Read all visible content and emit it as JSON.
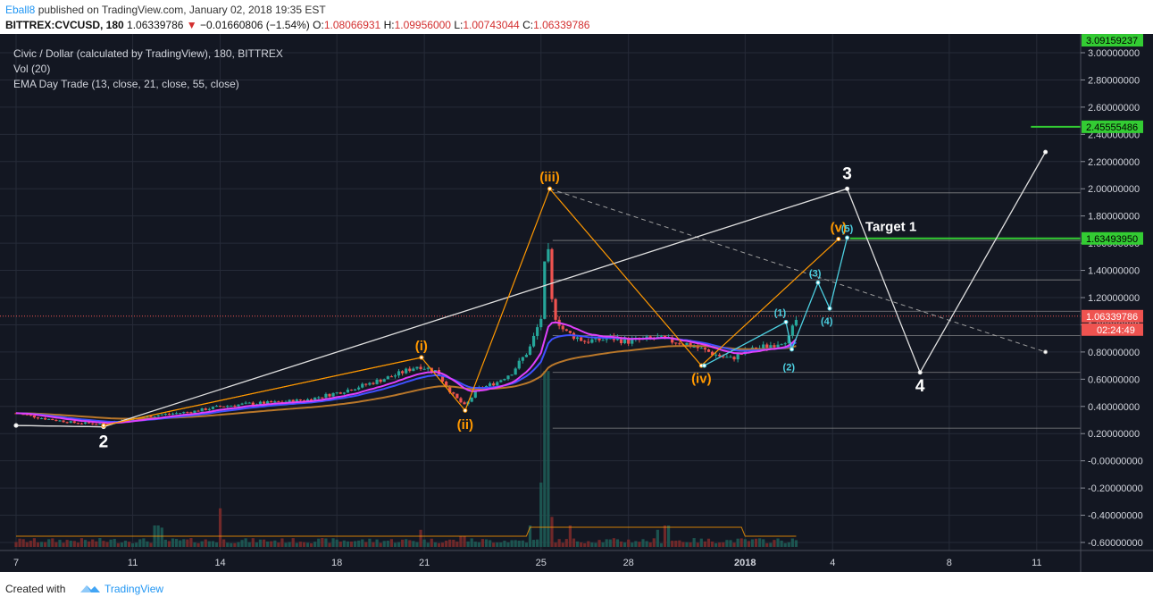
{
  "header": {
    "author": "Eball8",
    "published_text": "published on TradingView.com, January 02, 2018 19:35 EST",
    "symbol": "BITTREX:CVCUSD, 180",
    "last": "1.06339786",
    "change_arrow": "▼",
    "change": "−0.01660806 (−1.54%)",
    "o_label": "O:",
    "o": "1.08066931",
    "h_label": "H:",
    "h": "1.09956000",
    "l_label": "L:",
    "l": "1.00743044",
    "c_label": "C:",
    "c": "1.06339786"
  },
  "legend": {
    "title": "Civic / Dollar (calculated by TradingView), 180, BITTREX",
    "vol": "Vol (20)",
    "ema": "EMA Day Trade (13, close, 21, close, 55, close)"
  },
  "footer": {
    "created": "Created with",
    "brand": "TradingView",
    "logo_icon": "tradingview-cloud-icon"
  },
  "colors": {
    "background": "#131722",
    "grid": "#262b38",
    "up": "#26a69a",
    "down": "#ef5350",
    "ema13": "#e040fb",
    "ema21": "#3f51ff",
    "ema55": "#b9772a",
    "wave_orange": "#ff9800",
    "wave_white": "#e0e0e0",
    "wave_cyan": "#4dd0e1",
    "target_green": "#33cc33",
    "price_red": "#ef5350"
  },
  "chart_data": {
    "type": "candlestick",
    "y_axis": {
      "min": -0.7,
      "max": 3.1,
      "ticks": [
        "3.00000000",
        "2.80000000",
        "2.60000000",
        "2.40000000",
        "2.20000000",
        "2.00000000",
        "1.80000000",
        "1.60000000",
        "1.40000000",
        "1.20000000",
        "1.00000000",
        "0.80000000",
        "0.60000000",
        "0.40000000",
        "0.20000000",
        "-0.00000000",
        "-0.20000000",
        "-0.40000000",
        "-0.60000000"
      ],
      "tick_values": [
        3.0,
        2.8,
        2.6,
        2.4,
        2.2,
        2.0,
        1.8,
        1.6,
        1.4,
        1.2,
        1.0,
        0.8,
        0.6,
        0.4,
        0.2,
        0.0,
        -0.2,
        -0.4,
        -0.6
      ]
    },
    "x_axis": {
      "ticks": [
        {
          "label": "7",
          "day": 7
        },
        {
          "label": "11",
          "day": 11
        },
        {
          "label": "14",
          "day": 14
        },
        {
          "label": "18",
          "day": 18
        },
        {
          "label": "21",
          "day": 21
        },
        {
          "label": "25",
          "day": 25
        },
        {
          "label": "28",
          "day": 28
        },
        {
          "label": "2018",
          "day": 32
        },
        {
          "label": "4",
          "day": 35
        },
        {
          "label": "8",
          "day": 39
        },
        {
          "label": "11",
          "day": 42
        }
      ]
    },
    "candles_per_day": 8,
    "close_path": [
      [
        7,
        0.35
      ],
      [
        8,
        0.31
      ],
      [
        9,
        0.28
      ],
      [
        10,
        0.27
      ],
      [
        11,
        0.31
      ],
      [
        12,
        0.34
      ],
      [
        13,
        0.36
      ],
      [
        14,
        0.4
      ],
      [
        15,
        0.42
      ],
      [
        16,
        0.43
      ],
      [
        17,
        0.45
      ],
      [
        18,
        0.5
      ],
      [
        19,
        0.56
      ],
      [
        20,
        0.63
      ],
      [
        20.8,
        0.7
      ],
      [
        21.4,
        0.66
      ],
      [
        22,
        0.48
      ],
      [
        22.4,
        0.4
      ],
      [
        22.8,
        0.52
      ],
      [
        23.5,
        0.58
      ],
      [
        24,
        0.65
      ],
      [
        24.6,
        0.82
      ],
      [
        25,
        1.05
      ],
      [
        25.2,
        1.65
      ],
      [
        25.4,
        1.1
      ],
      [
        25.8,
        0.95
      ],
      [
        26.5,
        0.88
      ],
      [
        27.5,
        0.9
      ],
      [
        28,
        0.88
      ],
      [
        29,
        0.9
      ],
      [
        30,
        0.86
      ],
      [
        31,
        0.78
      ],
      [
        31.5,
        0.75
      ],
      [
        32,
        0.8
      ],
      [
        33,
        0.86
      ],
      [
        33.5,
        0.9
      ],
      [
        33.8,
        1.06
      ]
    ],
    "price_lines": {
      "top_box": 3.09159237,
      "target2": 2.45555486,
      "target1": 1.6349395,
      "last_price": 1.06339786,
      "countdown": "02:24:49"
    },
    "price_labels": {
      "top_box": "3.09159237",
      "target2": "2.45555486",
      "target1": "1.63493950",
      "last_price": "1.06339786"
    },
    "horizontal_levels": [
      1.97,
      1.62,
      1.33,
      1.1,
      0.92,
      0.65,
      0.24
    ],
    "waves": {
      "white_main": [
        [
          7,
          0.26
        ],
        [
          10.0,
          0.25
        ],
        [
          35.5,
          2.0
        ],
        [
          38.0,
          0.65
        ],
        [
          42.3,
          2.27
        ]
      ],
      "white_base": [
        [
          7,
          0.26
        ],
        [
          10.0,
          0.25
        ]
      ],
      "orange_primary": [
        [
          10.0,
          0.26
        ],
        [
          20.9,
          0.76
        ],
        [
          22.4,
          0.37
        ],
        [
          25.3,
          2.0
        ],
        [
          30.5,
          0.7
        ],
        [
          35.2,
          1.63
        ]
      ],
      "orange_sub": [
        [
          10.0,
          0.26
        ],
        [
          20.9,
          0.76
        ]
      ],
      "cyan": [
        [
          30.6,
          0.7
        ],
        [
          33.4,
          1.02
        ],
        [
          33.6,
          0.82
        ],
        [
          34.5,
          1.31
        ],
        [
          34.9,
          1.12
        ],
        [
          35.5,
          1.64
        ]
      ],
      "dashed": [
        [
          25.3,
          2.0
        ],
        [
          42.3,
          0.8
        ]
      ]
    },
    "wave_labels": [
      {
        "text": "2",
        "day": 10.0,
        "price": 0.14,
        "color": "white"
      },
      {
        "text": "3",
        "day": 35.5,
        "price": 2.11,
        "color": "white"
      },
      {
        "text": "4",
        "day": 38.0,
        "price": 0.55,
        "color": "white"
      },
      {
        "text": "Target 1",
        "day": 37.0,
        "price": 1.73,
        "color": "white"
      },
      {
        "text": "(i)",
        "day": 20.9,
        "price": 0.84,
        "color": "orange"
      },
      {
        "text": "(ii)",
        "day": 22.4,
        "price": 0.26,
        "color": "orange"
      },
      {
        "text": "(iii)",
        "day": 25.3,
        "price": 2.08,
        "color": "orange"
      },
      {
        "text": "(iv)",
        "day": 30.5,
        "price": 0.6,
        "color": "orange"
      },
      {
        "text": "(v)",
        "day": 35.2,
        "price": 1.71,
        "color": "orange"
      },
      {
        "text": "(1)",
        "day": 33.2,
        "price": 1.09,
        "color": "cyan"
      },
      {
        "text": "(2)",
        "day": 33.5,
        "price": 0.69,
        "color": "cyan"
      },
      {
        "text": "(3)",
        "day": 34.4,
        "price": 1.38,
        "color": "cyan"
      },
      {
        "text": "(4)",
        "day": 34.8,
        "price": 1.03,
        "color": "cyan"
      },
      {
        "text": "(5)",
        "day": 35.5,
        "price": 1.71,
        "color": "cyan"
      }
    ],
    "volume_spikes": [
      {
        "day": 11.8,
        "h": 0.1
      },
      {
        "day": 12.0,
        "h": 0.09
      },
      {
        "day": 14.0,
        "h": 0.18
      },
      {
        "day": 20.9,
        "h": 0.08
      },
      {
        "day": 22.3,
        "h": 0.05
      },
      {
        "day": 24.6,
        "h": 0.1
      },
      {
        "day": 25.0,
        "h": 0.3
      },
      {
        "day": 25.1,
        "h": 0.5
      },
      {
        "day": 25.2,
        "h": 0.82
      },
      {
        "day": 25.4,
        "h": 0.14
      },
      {
        "day": 26.0,
        "h": 0.1
      },
      {
        "day": 29.0,
        "h": 0.08
      },
      {
        "day": 29.3,
        "h": 0.1
      }
    ]
  }
}
